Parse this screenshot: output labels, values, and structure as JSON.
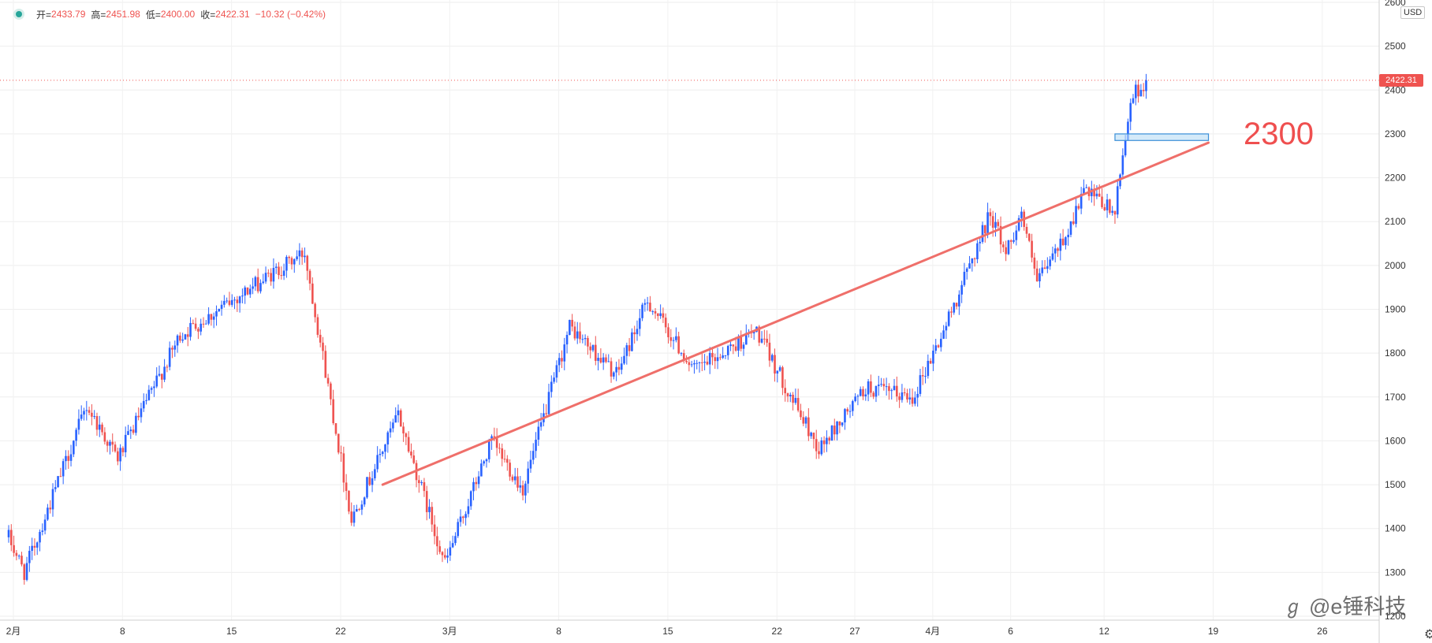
{
  "ohlc": {
    "open_key": "开=",
    "open": "2433.79",
    "high_key": "高=",
    "high": "2451.98",
    "low_key": "低=",
    "low": "2400.00",
    "close_key": "收=",
    "close": "2422.31",
    "change": "−10.32 (−0.42%)"
  },
  "currency": "USD",
  "last_price_tag": "2422.31",
  "annotation_level": "2300",
  "watermark": {
    "icon": "zhihu-style-swirl-icon",
    "text": "@e锤科技"
  },
  "settings_icon": "gear-icon",
  "colors": {
    "up": "#2962ff",
    "down": "#ef5350",
    "trendline": "#ef6f6a",
    "box_fill": "#b7dcf5",
    "box_stroke": "#3a8fd8"
  },
  "chart_data": {
    "type": "candlestick",
    "title": "",
    "ylim": [
      1200,
      2600
    ],
    "y_ticks": [
      "2600",
      "2500",
      "2400",
      "2300",
      "2200",
      "2100",
      "2000",
      "1900",
      "1800",
      "1700",
      "1600",
      "1500",
      "1400",
      "1300",
      "1200"
    ],
    "x_ticks": [
      "2月",
      "8",
      "15",
      "22",
      "3月",
      "8",
      "15",
      "22",
      "27",
      "4月",
      "6",
      "12",
      "19",
      "26"
    ],
    "grid": true,
    "last_price": 2422.31,
    "trendline": {
      "from": {
        "x": "2月25日",
        "y": 1500
      },
      "to": {
        "x": "4月19日",
        "y": 2280
      }
    },
    "support_zone": {
      "x_start": "4月13日",
      "x_end": "4月19日",
      "y_low": 2285,
      "y_high": 2300
    },
    "series_key_points": [
      {
        "x": "2月1日",
        "y": 1380
      },
      {
        "x": "2月2日",
        "y": 1300
      },
      {
        "x": "2月6日",
        "y": 1680
      },
      {
        "x": "2月8日",
        "y": 1560
      },
      {
        "x": "2月12日",
        "y": 1840
      },
      {
        "x": "2月20日",
        "y": 2030
      },
      {
        "x": "2月23日",
        "y": 1420
      },
      {
        "x": "2月26日",
        "y": 1660
      },
      {
        "x": "3月1日",
        "y": 1320
      },
      {
        "x": "3月4日",
        "y": 1600
      },
      {
        "x": "3月6日",
        "y": 1490
      },
      {
        "x": "3月9日",
        "y": 1860
      },
      {
        "x": "3月12日",
        "y": 1750
      },
      {
        "x": "3月14日",
        "y": 1920
      },
      {
        "x": "3月17日",
        "y": 1760
      },
      {
        "x": "3月21日",
        "y": 1850
      },
      {
        "x": "3月25日",
        "y": 1580
      },
      {
        "x": "3月28日",
        "y": 1720
      },
      {
        "x": "3月31日",
        "y": 1700
      },
      {
        "x": "4月2日",
        "y": 1850
      },
      {
        "x": "4月5日",
        "y": 2120
      },
      {
        "x": "4月6日",
        "y": 2030
      },
      {
        "x": "4月7日",
        "y": 2120
      },
      {
        "x": "4月8日",
        "y": 1960
      },
      {
        "x": "4月10日",
        "y": 2080
      },
      {
        "x": "4月11日",
        "y": 2170
      },
      {
        "x": "4月13日",
        "y": 2120
      },
      {
        "x": "4月14日",
        "y": 2380
      },
      {
        "x": "4月15日",
        "y": 2422
      }
    ]
  }
}
